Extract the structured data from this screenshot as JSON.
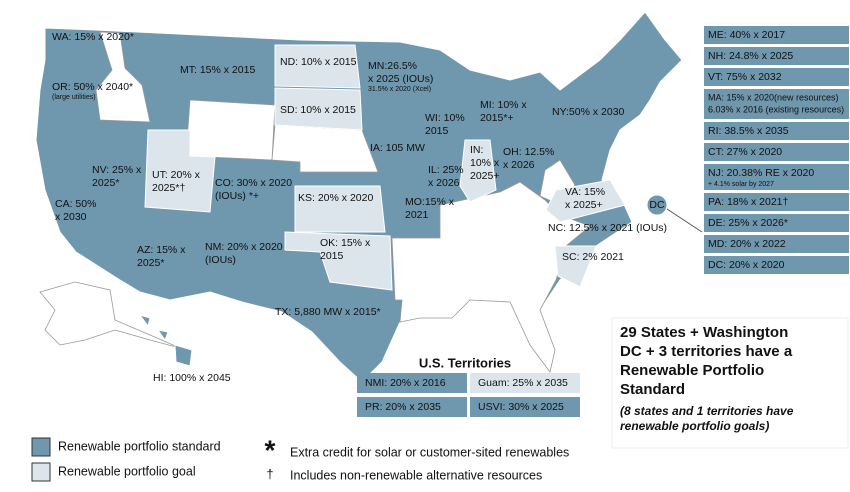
{
  "states": [
    {
      "lines": [
        "WA: 15% x 2020*"
      ]
    },
    {
      "lines": [
        "OR: 50% x 2040*"
      ],
      "note": "(large utilities)"
    },
    {
      "lines": [
        "MT: 15% x 2015"
      ]
    },
    {
      "lines": [
        "ND: 10% x 2015"
      ]
    },
    {
      "lines": [
        "SD: 10% x 2015"
      ]
    },
    {
      "lines": [
        "MN:26.5%",
        "x 2025 (IOUs)"
      ],
      "note": "31.5% x 2020 (Xcel)"
    },
    {
      "lines": [
        "MI: 10% x",
        "2015*+"
      ]
    },
    {
      "lines": [
        "NY:50% x 2030"
      ]
    },
    {
      "lines": [
        "WI: 10%",
        "2015"
      ]
    },
    {
      "lines": [
        "IA: 105 MW"
      ]
    },
    {
      "lines": [
        "IN:",
        "10% x",
        "2025+"
      ]
    },
    {
      "lines": [
        "OH: 12.5%",
        "x 2026"
      ]
    },
    {
      "lines": [
        "IL: 25%",
        "x 2026"
      ]
    },
    {
      "lines": [
        "NV: 25% x",
        "2025*"
      ]
    },
    {
      "lines": [
        "UT: 20% x",
        "2025*†"
      ]
    },
    {
      "lines": [
        "CO: 30% x 2020",
        "(IOUs) *+"
      ]
    },
    {
      "lines": [
        "CA: 50%",
        "x 2030"
      ]
    },
    {
      "lines": [
        "KS: 20% x 2020"
      ]
    },
    {
      "lines": [
        "MO:15% x",
        "2021"
      ]
    },
    {
      "lines": [
        "VA: 15%",
        "x 2025+"
      ]
    },
    {
      "lines": [
        "NC: 12.5% x 2021 (IOUs)"
      ]
    },
    {
      "lines": [
        "OK: 15% x",
        "2015"
      ]
    },
    {
      "lines": [
        "AZ: 15% x",
        "2025*"
      ]
    },
    {
      "lines": [
        "NM: 20% x 2020",
        "(IOUs)"
      ]
    },
    {
      "lines": [
        "SC: 2% 2021"
      ]
    },
    {
      "lines": [
        "TX: 5,880 MW x 2015*"
      ]
    },
    {
      "lines": [
        "HI: 100% x 2045"
      ]
    }
  ],
  "dc_marker": "DC",
  "east_states": [
    {
      "lines": [
        "ME: 40% x 2017"
      ]
    },
    {
      "lines": [
        "NH: 24.8% x 2025"
      ]
    },
    {
      "lines": [
        "VT: 75% x 2032"
      ]
    },
    {
      "lines": [
        "MA: 15% x 2020(new resources)",
        "6.03% x 2016 (existing resources)"
      ]
    },
    {
      "lines": [
        "RI: 38.5% x 2035"
      ]
    },
    {
      "lines": [
        "CT: 27% x 2020"
      ]
    },
    {
      "lines": [
        "NJ: 20.38% RE x 2020"
      ],
      "note": "+ 4.1% solar by 2027"
    },
    {
      "lines": [
        "PA: 18% x 2021†"
      ]
    },
    {
      "lines": [
        "DE: 25% x 2026*"
      ]
    },
    {
      "lines": [
        "MD: 20% x 2022"
      ]
    },
    {
      "lines": [
        "DC: 20% x 2020"
      ]
    }
  ],
  "territories": {
    "title": "U.S. Territories",
    "items": [
      {
        "label": "NMI: 20% x 2016"
      },
      {
        "label": "Guam: 25% x 2035"
      },
      {
        "label": "PR: 20% x 2035"
      },
      {
        "label": "USVI: 30% x 2025"
      }
    ]
  },
  "summary": {
    "lines": [
      "29 States + Washington",
      "DC + 3 territories have a",
      "Renewable Portfolio",
      "Standard"
    ],
    "note": [
      "(8 states and 1 territories have",
      "renewable portfolio goals)"
    ]
  },
  "legend": [
    {
      "label": "Renewable portfolio standard",
      "color": "#6f97ad"
    },
    {
      "label": "Renewable portfolio goal",
      "color": "#dbe5eb"
    }
  ],
  "footnotes": [
    {
      "symbol": "*",
      "text": "Extra credit for solar or customer-sited renewables"
    },
    {
      "symbol": "†",
      "text": "Includes non-renewable alternative resources"
    }
  ]
}
